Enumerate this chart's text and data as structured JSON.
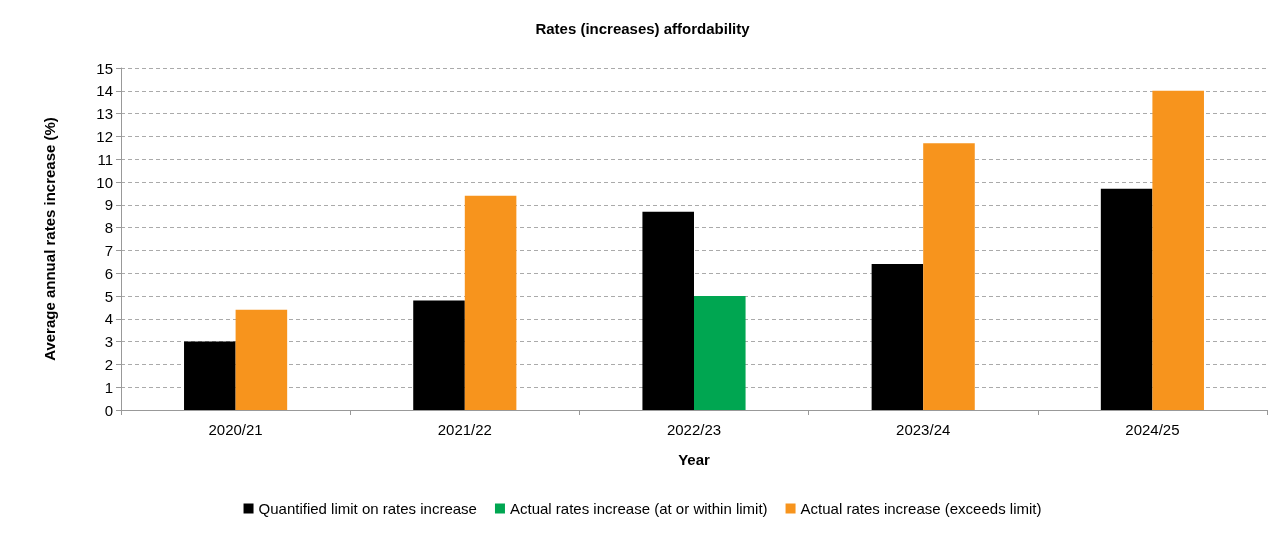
{
  "chart_data": {
    "type": "bar",
    "title": "Rates (increases) affordability",
    "xlabel": "Year",
    "ylabel": "Average annual rates increase (%)",
    "categories": [
      "2020/21",
      "2021/22",
      "2022/23",
      "2023/24",
      "2024/25"
    ],
    "series": [
      {
        "name": "Quantified limit on rates increase",
        "color": "#000000",
        "values": [
          3.0,
          4.8,
          8.7,
          6.4,
          9.7
        ]
      },
      {
        "name": "Actual rates increase (at or within limit)",
        "color": "#00a651",
        "values": [
          null,
          null,
          5.0,
          null,
          null
        ]
      },
      {
        "name": "Actual rates increase (exceeds limit)",
        "color": "#f7941d",
        "values": [
          4.4,
          9.4,
          null,
          11.7,
          14.0
        ]
      }
    ],
    "ylim": [
      0,
      15
    ],
    "yticks": [
      0,
      1,
      2,
      3,
      4,
      5,
      6,
      7,
      8,
      9,
      10,
      11,
      12,
      13,
      14,
      15
    ],
    "grid": "y",
    "line_style": "dashed",
    "legend": "bottom"
  }
}
